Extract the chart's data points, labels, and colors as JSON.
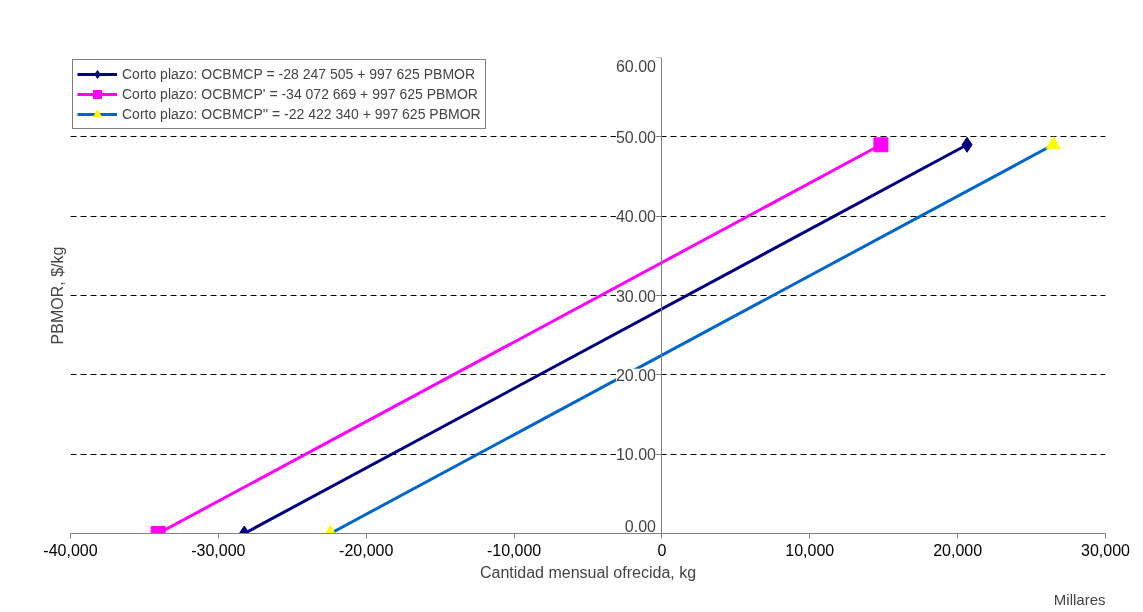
{
  "chart_data": {
    "type": "line",
    "xlabel": "Cantidad mensual ofrecida, kg",
    "ylabel": "PBMOR, $/kg",
    "annotations": [
      "Millares"
    ],
    "series": [
      {
        "name": "Corto plazo: OCBMCP = -28 247 505 + 997 625 PBMOR",
        "color": "#000080",
        "marker": "diamond",
        "x": [
          -28247.505,
          20636.12
        ],
        "values": [
          0,
          49
        ]
      },
      {
        "name": "Corto plazo: OCBMCP' = -34 072 669 + 997 625 PBMOR",
        "color": "#ff00ff",
        "marker": "square",
        "x": [
          -34072.669,
          14810.956
        ],
        "values": [
          0,
          49
        ]
      },
      {
        "name": "Corto plazo: OCBMCP'' = -22 422 340 + 997 625 PBMOR",
        "color": "#0066cc",
        "marker": "triangle",
        "colors": [
          "#ffff00",
          "#ffff00"
        ],
        "x": [
          -22422.34,
          26461.285
        ],
        "values": [
          0,
          49
        ]
      }
    ],
    "xlim": [
      -40000,
      30000
    ],
    "ylim": [
      0,
      60
    ],
    "xticks": [
      {
        "value": -40000,
        "label": "-40,000"
      },
      {
        "value": -30000,
        "label": "-30,000"
      },
      {
        "value": -20000,
        "label": "-20,000"
      },
      {
        "value": -10000,
        "label": "-10,000"
      },
      0,
      {
        "value": 10000,
        "label": "10,000"
      },
      {
        "value": 20000,
        "label": "20,000"
      },
      {
        "value": 30000,
        "label": "30,000"
      }
    ],
    "yticks": [
      {
        "value": 0,
        "label": "0.00"
      },
      {
        "value": 10,
        "label": "10.00"
      },
      {
        "value": 20,
        "label": "20.00"
      },
      {
        "value": 30,
        "label": "30.00"
      },
      {
        "value": 40,
        "label": "40.00"
      },
      {
        "value": 50,
        "label": "50.00"
      },
      {
        "value": 60,
        "label": "60.00"
      }
    ],
    "grid": "y",
    "legend": "top left",
    "line_style": "solid"
  }
}
